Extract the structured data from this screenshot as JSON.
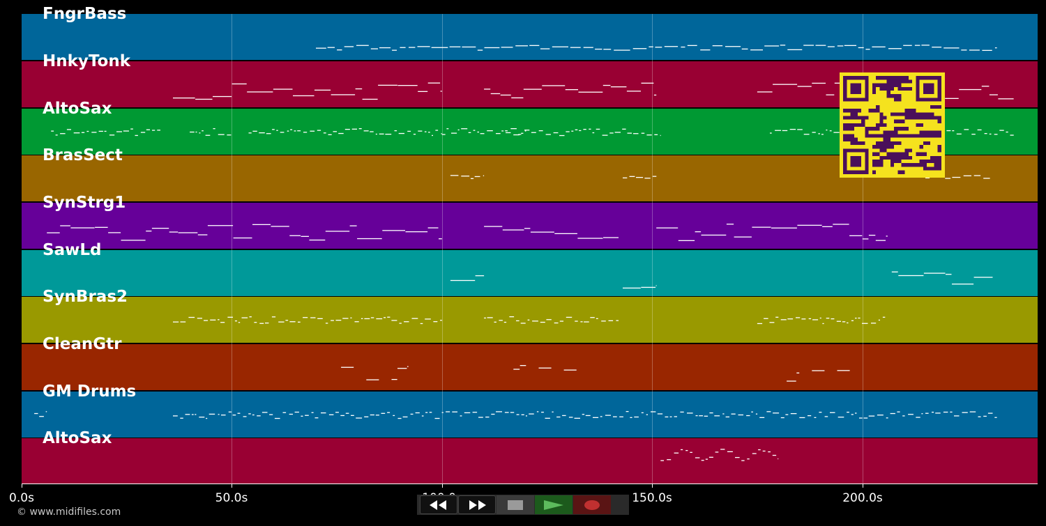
{
  "app": {
    "copyright": "© www.midifiles.com"
  },
  "tracks": [
    {
      "name": "FngrBass",
      "color": "#00669a"
    },
    {
      "name": "HnkyTonk",
      "color": "#990033"
    },
    {
      "name": "AltoSax",
      "color": "#009933"
    },
    {
      "name": "BrasSect",
      "color": "#996600"
    },
    {
      "name": "SynStrg1",
      "color": "#660099"
    },
    {
      "name": "SawLd",
      "color": "#009999"
    },
    {
      "name": "SynBras2",
      "color": "#999900"
    },
    {
      "name": "CleanGtr",
      "color": "#992600"
    },
    {
      "name": "GM Drums",
      "color": "#00669a"
    },
    {
      "name": "AltoSax",
      "color": "#990033"
    }
  ],
  "timeline": {
    "max_seconds": 241.7,
    "ticks": [
      "0.0s",
      "50.0s",
      "100.0s",
      "150.0s",
      "200.0s"
    ],
    "tick_values": [
      0,
      50,
      100,
      150,
      200
    ]
  },
  "note_regions": [
    {
      "track": 0,
      "segments": [
        [
          70,
          232
        ]
      ],
      "style": "sparse-line"
    },
    {
      "track": 1,
      "segments": [
        [
          36,
          100
        ],
        [
          110,
          151
        ],
        [
          175,
          236
        ]
      ],
      "style": "stack"
    },
    {
      "track": 2,
      "segments": [
        [
          7,
          33
        ],
        [
          40,
          50
        ],
        [
          54,
          100
        ],
        [
          100,
          120
        ],
        [
          115,
          152
        ],
        [
          178,
          236
        ]
      ],
      "style": "dots"
    },
    {
      "track": 3,
      "segments": [
        [
          102,
          110
        ],
        [
          143,
          151
        ],
        [
          215,
          231
        ]
      ],
      "style": "line"
    },
    {
      "track": 4,
      "segments": [
        [
          6,
          100
        ],
        [
          110,
          142
        ],
        [
          151,
          206
        ]
      ],
      "style": "stack"
    },
    {
      "track": 5,
      "segments": [
        [
          102,
          110
        ],
        [
          143,
          151
        ],
        [
          207,
          231
        ]
      ],
      "style": "stack"
    },
    {
      "track": 6,
      "segments": [
        [
          36,
          100
        ],
        [
          110,
          142
        ],
        [
          175,
          206
        ]
      ],
      "style": "dots"
    },
    {
      "track": 7,
      "segments": [
        [
          76,
          79
        ],
        [
          82,
          85
        ],
        [
          88,
          92
        ],
        [
          117,
          120
        ],
        [
          123,
          126
        ],
        [
          129,
          132
        ],
        [
          182,
          185
        ],
        [
          188,
          191
        ],
        [
          194,
          197
        ]
      ],
      "style": "stack"
    },
    {
      "track": 8,
      "segments": [
        [
          3,
          6
        ],
        [
          36,
          232
        ]
      ],
      "style": "dots"
    },
    {
      "track": 9,
      "segments": [
        [
          152,
          180
        ]
      ],
      "style": "wave"
    }
  ],
  "transport": {
    "buttons": [
      "rewind",
      "fast-forward",
      "stop",
      "play",
      "record"
    ]
  },
  "colors": {
    "background": "#000000",
    "grid": "#ffffff",
    "qr_fg": "#4a0f5a",
    "qr_bg": "#f5e21e",
    "play": "#5dbb5d",
    "record": "#c03030"
  }
}
